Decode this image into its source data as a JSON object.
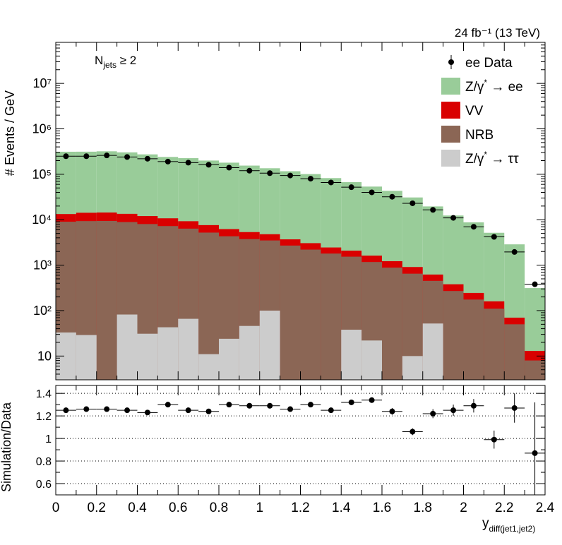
{
  "chart_data": [
    {
      "type": "bar",
      "panel": "upper",
      "stacked": true,
      "log_scale_y": true,
      "ylabel": "# Events / GeV",
      "ylim": [
        3,
        80000000
      ],
      "xlim": [
        0,
        2.4
      ],
      "lumi_label": "24 fb⁻¹ (13 TeV)",
      "selection_label": "N_jets ≥ 2",
      "selection_main": "N",
      "selection_sub": "jets",
      "selection_rest": " ≥ 2",
      "legend_position": "top-right",
      "ytick_labels": [
        {
          "value": 10,
          "label": "10"
        },
        {
          "value": 100,
          "label": "10²"
        },
        {
          "value": 1000,
          "label": "10³"
        },
        {
          "value": 10000,
          "label": "10⁴"
        },
        {
          "value": 100000,
          "label": "10⁵"
        },
        {
          "value": 1000000,
          "label": "10⁶"
        },
        {
          "value": 10000000,
          "label": "10⁷"
        }
      ],
      "bin_edges": [
        0,
        0.1,
        0.2,
        0.3,
        0.4,
        0.5,
        0.6,
        0.7,
        0.8,
        0.9,
        1.0,
        1.1,
        1.2,
        1.3,
        1.4,
        1.5,
        1.6,
        1.7,
        1.8,
        1.9,
        2.0,
        2.1,
        2.2,
        2.3,
        2.4
      ],
      "series": [
        {
          "name": "Z/γ* → ττ",
          "color": "#cccccc",
          "values": [
            33,
            29,
            0,
            82,
            31,
            43,
            66,
            11,
            24,
            46,
            100,
            0,
            0,
            0,
            38,
            22,
            3,
            10,
            52,
            0,
            0,
            0,
            0,
            0
          ]
        },
        {
          "name": "NRB",
          "color": "#8b6655",
          "values": [
            9000,
            9300,
            9400,
            8800,
            8000,
            7200,
            6300,
            5200,
            4300,
            3700,
            3400,
            2700,
            2200,
            1800,
            1500,
            1150,
            880,
            640,
            400,
            270,
            175,
            110,
            50,
            8
          ]
        },
        {
          "name": "VV",
          "color": "#d90000",
          "values": [
            4300,
            4900,
            5000,
            4600,
            4000,
            3500,
            2900,
            2400,
            1900,
            1600,
            1300,
            1000,
            850,
            650,
            550,
            450,
            340,
            260,
            170,
            110,
            70,
            50,
            20,
            5
          ]
        },
        {
          "name": "Z/γ* → ee",
          "color": "#99cc99",
          "values": [
            300000,
            300000,
            306000,
            290000,
            262000,
            230000,
            217000,
            193000,
            174000,
            150000,
            131000,
            113000,
            98000,
            80000,
            65000,
            52000,
            42000,
            30000,
            19000,
            12000,
            8500,
            5000,
            2800,
            300
          ]
        }
      ],
      "data": {
        "name": "ee Data",
        "x": [
          0.05,
          0.15,
          0.25,
          0.35,
          0.45,
          0.55,
          0.65,
          0.75,
          0.85,
          0.95,
          1.05,
          1.15,
          1.25,
          1.35,
          1.45,
          1.55,
          1.65,
          1.75,
          1.85,
          1.95,
          2.05,
          2.15,
          2.25,
          2.35
        ],
        "y": [
          250000,
          250000,
          260000,
          240000,
          220000,
          190000,
          180000,
          162000,
          140000,
          120000,
          106000,
          94000,
          80000,
          66000,
          52000,
          40000,
          32000,
          23000,
          16500,
          11000,
          7000,
          4200,
          1950,
          380
        ]
      },
      "legend": [
        {
          "label": "ee Data",
          "kind": "marker",
          "color": "#000000"
        },
        {
          "label_main": "Z/γ",
          "label_sup": "*",
          "label_tail": " → ee",
          "kind": "fill",
          "color": "#99cc99"
        },
        {
          "label_main": "VV",
          "label_sup": "",
          "label_tail": "",
          "kind": "fill",
          "color": "#d90000"
        },
        {
          "label_main": "NRB",
          "label_sup": "",
          "label_tail": "",
          "kind": "fill",
          "color": "#8b6655"
        },
        {
          "label_main": "Z/γ",
          "label_sup": "*",
          "label_tail": " → ττ",
          "kind": "fill",
          "color": "#cccccc"
        }
      ]
    },
    {
      "type": "scatter",
      "panel": "lower",
      "ylabel": "Simulation/Data",
      "xlabel": "y",
      "xlabel_sub": "diff(jet1,jet2)",
      "ylim": [
        0.5,
        1.47
      ],
      "xlim": [
        0,
        2.4
      ],
      "gridlines_y": [
        0.6,
        0.8,
        1.0,
        1.2,
        1.4
      ],
      "ytick_labels": [
        {
          "value": 0.6,
          "label": "0.6"
        },
        {
          "value": 0.8,
          "label": "0.8"
        },
        {
          "value": 1.0,
          "label": "1"
        },
        {
          "value": 1.2,
          "label": "1.2"
        },
        {
          "value": 1.4,
          "label": "1.4"
        }
      ],
      "xtick_labels": [
        {
          "value": 0,
          "label": "0"
        },
        {
          "value": 0.2,
          "label": "0.2"
        },
        {
          "value": 0.4,
          "label": "0.4"
        },
        {
          "value": 0.6,
          "label": "0.6"
        },
        {
          "value": 0.8,
          "label": "0.8"
        },
        {
          "value": 1.0,
          "label": "1"
        },
        {
          "value": 1.2,
          "label": "1.2"
        },
        {
          "value": 1.4,
          "label": "1.4"
        },
        {
          "value": 1.6,
          "label": "1.6"
        },
        {
          "value": 1.8,
          "label": "1.8"
        },
        {
          "value": 2.0,
          "label": "2"
        },
        {
          "value": 2.2,
          "label": "2.2"
        },
        {
          "value": 2.4,
          "label": "2.4"
        }
      ],
      "x": [
        0.05,
        0.15,
        0.25,
        0.35,
        0.45,
        0.55,
        0.65,
        0.75,
        0.85,
        0.95,
        1.05,
        1.15,
        1.25,
        1.35,
        1.45,
        1.55,
        1.65,
        1.75,
        1.85,
        1.95,
        2.05,
        2.15,
        2.25,
        2.35
      ],
      "y": [
        1.25,
        1.26,
        1.26,
        1.25,
        1.23,
        1.3,
        1.25,
        1.24,
        1.3,
        1.29,
        1.29,
        1.26,
        1.3,
        1.25,
        1.32,
        1.34,
        1.24,
        1.06,
        1.22,
        1.25,
        1.29,
        0.99,
        1.27,
        0.87
      ],
      "yerr": [
        0.01,
        0.01,
        0.01,
        0.01,
        0.01,
        0.01,
        0.01,
        0.01,
        0.01,
        0.01,
        0.01,
        0.01,
        0.01,
        0.02,
        0.02,
        0.02,
        0.03,
        0.03,
        0.04,
        0.05,
        0.06,
        0.08,
        0.13,
        0.45
      ]
    }
  ]
}
